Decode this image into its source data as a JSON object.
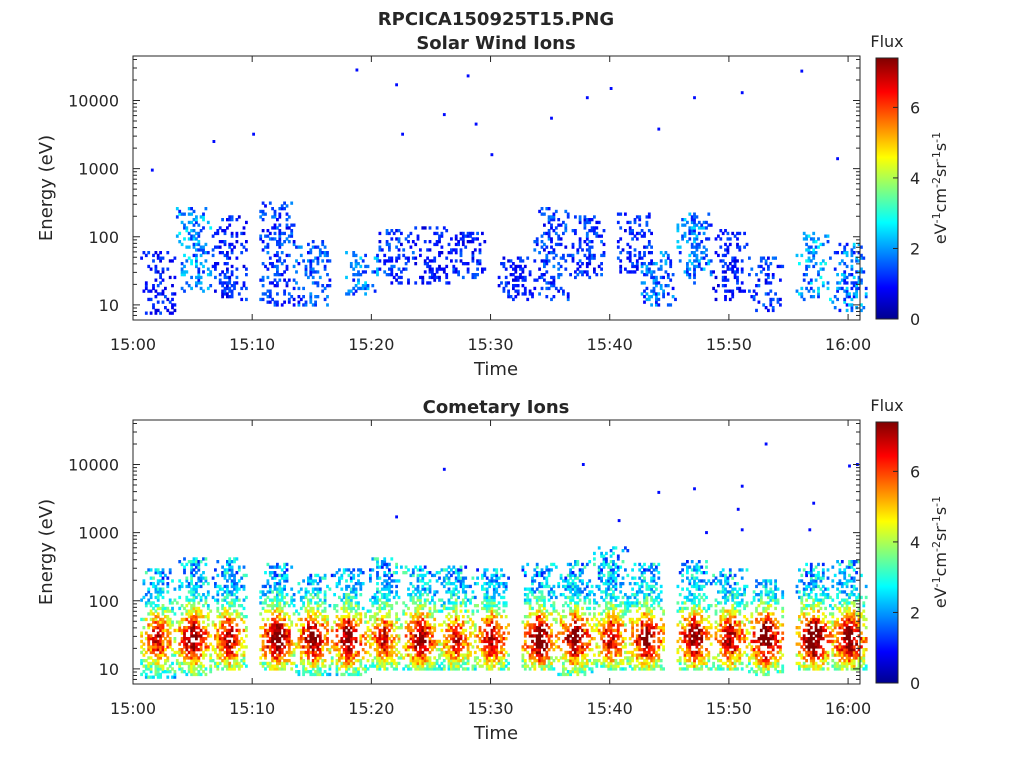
{
  "figure_title": "RPCICA150925T15.PNG",
  "chart_data": [
    {
      "type": "heatmap",
      "title": "Solar Wind Ions",
      "xlabel": "Time",
      "ylabel": "Energy (eV)",
      "xlim": [
        "15:00",
        "16:01"
      ],
      "ylim": [
        6,
        45000
      ],
      "yscale": "log",
      "xticks": [
        "15:00",
        "15:10",
        "15:20",
        "15:30",
        "15:40",
        "15:50",
        "16:00"
      ],
      "yticks": [
        "10",
        "100",
        "1000",
        "10000"
      ],
      "colorbar": {
        "title": "Flux",
        "label": "eV-1cm-2sr-1s-1",
        "range": [
          0,
          7.4
        ],
        "ticks": [
          "0",
          "2",
          "4",
          "6"
        ],
        "colormap": "jet"
      },
      "note": "Sparse, low-flux (mostly 0.5–2.5) scattered ion counts; bursts near 15:05, 15:08, 15:12, 15:15, 15:22, 15:25, 15:28, 15:32, 15:35, 15:38, 15:40, 15:42, 15:45, 15:47, 15:50, 15:53, 15:57, 16:00 between 10–300 eV, plus isolated points up to ~30000 eV",
      "bursts": [
        {
          "time": "15:02",
          "emin": 7,
          "emax": 60,
          "flux": 1.2
        },
        {
          "time": "15:05",
          "emin": 15,
          "emax": 280,
          "flux": 2.2
        },
        {
          "time": "15:08",
          "emin": 12,
          "emax": 200,
          "flux": 1.3
        },
        {
          "time": "15:12",
          "emin": 10,
          "emax": 320,
          "flux": 1.5
        },
        {
          "time": "15:15",
          "emin": 10,
          "emax": 90,
          "flux": 1.6
        },
        {
          "time": "15:19",
          "emin": 14,
          "emax": 60,
          "flux": 2.0
        },
        {
          "time": "15:22",
          "emin": 20,
          "emax": 130,
          "flux": 1.4
        },
        {
          "time": "15:25",
          "emin": 20,
          "emax": 140,
          "flux": 1.1
        },
        {
          "time": "15:28",
          "emin": 25,
          "emax": 120,
          "flux": 1.3
        },
        {
          "time": "15:32",
          "emin": 12,
          "emax": 50,
          "flux": 1.2
        },
        {
          "time": "15:35",
          "emin": 12,
          "emax": 260,
          "flux": 1.5
        },
        {
          "time": "15:38",
          "emin": 25,
          "emax": 200,
          "flux": 1.4
        },
        {
          "time": "15:42",
          "emin": 30,
          "emax": 220,
          "flux": 1.3
        },
        {
          "time": "15:44",
          "emin": 10,
          "emax": 60,
          "flux": 1.8
        },
        {
          "time": "15:47",
          "emin": 20,
          "emax": 220,
          "flux": 2.0
        },
        {
          "time": "15:50",
          "emin": 12,
          "emax": 130,
          "flux": 1.2
        },
        {
          "time": "15:53",
          "emin": 8,
          "emax": 50,
          "flux": 1.4
        },
        {
          "time": "15:57",
          "emin": 12,
          "emax": 120,
          "flux": 2.3
        },
        {
          "time": "16:00",
          "emin": 8,
          "emax": 80,
          "flux": 2.0
        }
      ],
      "isolated_points": [
        {
          "time": "15:01:30",
          "energy": 950,
          "flux": 1.0
        },
        {
          "time": "15:06:40",
          "energy": 2500,
          "flux": 1.0
        },
        {
          "time": "15:10",
          "energy": 3200,
          "flux": 1.0
        },
        {
          "time": "15:18:40",
          "energy": 28000,
          "flux": 1.0
        },
        {
          "time": "15:22",
          "energy": 17000,
          "flux": 1.0
        },
        {
          "time": "15:22:30",
          "energy": 3200,
          "flux": 1.0
        },
        {
          "time": "15:26",
          "energy": 6200,
          "flux": 1.0
        },
        {
          "time": "15:28",
          "energy": 23000,
          "flux": 1.0
        },
        {
          "time": "15:28:40",
          "energy": 4500,
          "flux": 1.0
        },
        {
          "time": "15:30",
          "energy": 1600,
          "flux": 1.0
        },
        {
          "time": "15:35",
          "energy": 5500,
          "flux": 1.0
        },
        {
          "time": "15:38",
          "energy": 11000,
          "flux": 1.0
        },
        {
          "time": "15:40",
          "energy": 15000,
          "flux": 1.0
        },
        {
          "time": "15:44",
          "energy": 3800,
          "flux": 1.0
        },
        {
          "time": "15:47",
          "energy": 11000,
          "flux": 1.0
        },
        {
          "time": "15:51",
          "energy": 13000,
          "flux": 1.0
        },
        {
          "time": "15:56",
          "energy": 27000,
          "flux": 1.0
        },
        {
          "time": "15:59",
          "energy": 1400,
          "flux": 1.0
        }
      ]
    },
    {
      "type": "heatmap",
      "title": "Cometary Ions",
      "xlabel": "Time",
      "ylabel": "Energy (eV)",
      "xlim": [
        "15:00",
        "16:01"
      ],
      "ylim": [
        6,
        45000
      ],
      "yscale": "log",
      "xticks": [
        "15:00",
        "15:10",
        "15:20",
        "15:30",
        "15:40",
        "15:50",
        "16:00"
      ],
      "yticks": [
        "10",
        "100",
        "1000",
        "10000"
      ],
      "colorbar": {
        "title": "Flux",
        "label": "eV-1cm-2sr-1s-1",
        "range": [
          0,
          7.4
        ],
        "ticks": [
          "0",
          "2",
          "4",
          "6"
        ],
        "colormap": "jet"
      },
      "note": "Dense repeating bursts roughly every 3 minutes, each spanning ~7–400 eV, peak flux ~5.5–6.5 near 20–40 eV",
      "bursts": [
        {
          "time": "15:02",
          "emin": 7,
          "emax": 300,
          "peak": 4.8
        },
        {
          "time": "15:05",
          "emin": 8,
          "emax": 450,
          "peak": 5.8
        },
        {
          "time": "15:08",
          "emin": 10,
          "emax": 420,
          "peak": 5.2
        },
        {
          "time": "15:12",
          "emin": 10,
          "emax": 350,
          "peak": 6.0
        },
        {
          "time": "15:15",
          "emin": 8,
          "emax": 250,
          "peak": 5.6
        },
        {
          "time": "15:18",
          "emin": 8,
          "emax": 300,
          "peak": 5.8
        },
        {
          "time": "15:21",
          "emin": 10,
          "emax": 420,
          "peak": 4.8
        },
        {
          "time": "15:24",
          "emin": 10,
          "emax": 330,
          "peak": 5.6
        },
        {
          "time": "15:27",
          "emin": 10,
          "emax": 330,
          "peak": 4.8
        },
        {
          "time": "15:30",
          "emin": 10,
          "emax": 300,
          "peak": 5.4
        },
        {
          "time": "15:34",
          "emin": 10,
          "emax": 350,
          "peak": 6.0
        },
        {
          "time": "15:37",
          "emin": 8,
          "emax": 380,
          "peak": 5.8
        },
        {
          "time": "15:40",
          "emin": 10,
          "emax": 600,
          "peak": 5.0
        },
        {
          "time": "15:43",
          "emin": 10,
          "emax": 360,
          "peak": 5.8
        },
        {
          "time": "15:47",
          "emin": 10,
          "emax": 400,
          "peak": 5.8
        },
        {
          "time": "15:50",
          "emin": 10,
          "emax": 300,
          "peak": 5.4
        },
        {
          "time": "15:53",
          "emin": 8,
          "emax": 200,
          "peak": 6.2
        },
        {
          "time": "15:57",
          "emin": 10,
          "emax": 350,
          "peak": 6.4
        },
        {
          "time": "16:00",
          "emin": 10,
          "emax": 400,
          "peak": 6.0
        }
      ],
      "isolated_points": [
        {
          "time": "15:22",
          "energy": 1700,
          "flux": 1.0
        },
        {
          "time": "15:26",
          "energy": 8500,
          "flux": 1.0
        },
        {
          "time": "15:37:40",
          "energy": 10000,
          "flux": 1.0
        },
        {
          "time": "15:40:40",
          "energy": 1500,
          "flux": 1.0
        },
        {
          "time": "15:44",
          "energy": 3900,
          "flux": 1.0
        },
        {
          "time": "15:47",
          "energy": 4400,
          "flux": 1.0
        },
        {
          "time": "15:48",
          "energy": 1000,
          "flux": 1.0
        },
        {
          "time": "15:50:40",
          "energy": 2200,
          "flux": 1.0
        },
        {
          "time": "15:51",
          "energy": 4800,
          "flux": 1.0
        },
        {
          "time": "15:51",
          "energy": 1100,
          "flux": 1.0
        },
        {
          "time": "15:53",
          "energy": 20000,
          "flux": 1.0
        },
        {
          "time": "15:56:40",
          "energy": 1100,
          "flux": 1.0
        },
        {
          "time": "15:57",
          "energy": 2700,
          "flux": 1.0
        },
        {
          "time": "16:00",
          "energy": 9500,
          "flux": 1.0
        },
        {
          "time": "16:00:40",
          "energy": 10000,
          "flux": 1.0
        }
      ]
    }
  ]
}
